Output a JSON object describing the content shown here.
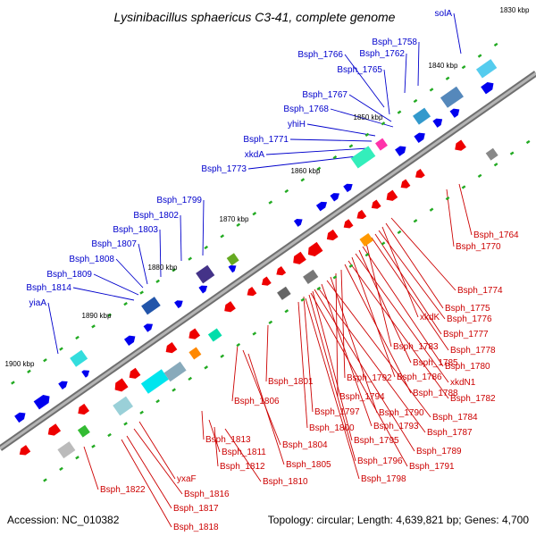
{
  "title": "Lysinibacillus sphaericus C3-41, complete genome",
  "footer": {
    "accession": "Accession: NC_010382",
    "summary": "Topology: circular; Length: 4,639,821 bp; Genes: 4,700"
  },
  "ticks": [
    "1830 kbp",
    "1840 kbp",
    "1850 kbp",
    "1860 kbp",
    "1870 kbp",
    "1880 kbp",
    "1890 kbp",
    "1900 kbp"
  ],
  "colors": {
    "label_forward": "#0000cc",
    "label_reverse": "#cc0000",
    "backbone": "#8c8c8c",
    "arrow_forward": "#0000ee",
    "arrow_reverse": "#ee0000",
    "marker": "#22aa22"
  },
  "labels_upper": [
    "solA",
    "Bsph_1758",
    "Bsph_1762",
    "Bsph_1766",
    "Bsph_1765",
    "Bsph_1767",
    "Bsph_1768",
    "yhiH",
    "Bsph_1771",
    "xkdA",
    "Bsph_1773",
    "Bsph_1799",
    "Bsph_1802",
    "Bsph_1803",
    "Bsph_1807",
    "Bsph_1808",
    "Bsph_1809",
    "Bsph_1814",
    "yiaA"
  ],
  "labels_lower": [
    "Bsph_1764",
    "Bsph_1770",
    "Bsph_1774",
    "Bsph_1775",
    "xkdK",
    "Bsph_1776",
    "Bsph_1777",
    "Bsph_1778",
    "Bsph_1783",
    "Bsph_1780",
    "Bsph_1785",
    "xkdN1",
    "Bsph_1786",
    "Bsph_1782",
    "Bsph_1788",
    "Bsph_1801",
    "Bsph_1792",
    "Bsph_1794",
    "Bsph_1790",
    "Bsph_1784",
    "Bsph_1806",
    "Bsph_1797",
    "Bsph_1793",
    "Bsph_1787",
    "Bsph_1800",
    "Bsph_1795",
    "Bsph_1789",
    "Bsph_1804",
    "Bsph_1796",
    "Bsph_1791",
    "Bsph_1805",
    "Bsph_1798",
    "Bsph_1813",
    "Bsph_1811",
    "Bsph_1812",
    "Bsph_1810",
    "yxaF",
    "Bsph_1816",
    "Bsph_1822",
    "Bsph_1817",
    "Bsph_1818"
  ]
}
